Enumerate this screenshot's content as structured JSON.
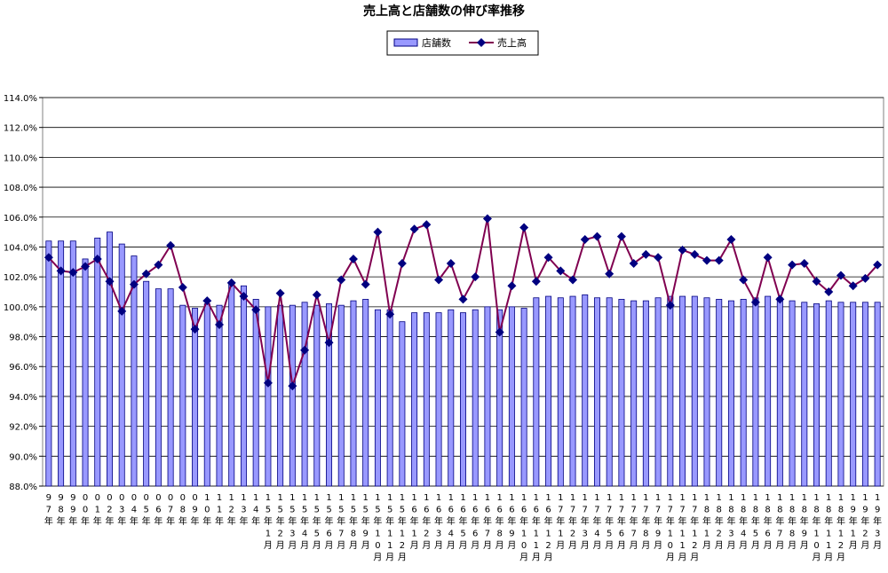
{
  "chart_data": {
    "type": "bar-line",
    "title": "売上高と店舗数の伸び率推移",
    "categories": [
      "97年",
      "98年",
      "99年",
      "00年",
      "01年",
      "02年",
      "03年",
      "04年",
      "05年",
      "06年",
      "07年",
      "08年",
      "09年",
      "10年",
      "11年",
      "12年",
      "13年",
      "14年",
      "15年1月",
      "15年2月",
      "15年3月",
      "15年4月",
      "15年5月",
      "15年6月",
      "15年7月",
      "15年8月",
      "15年9月",
      "15年10月",
      "15年11月",
      "15年12月",
      "16年1月",
      "16年2月",
      "16年3月",
      "16年4月",
      "16年5月",
      "16年6月",
      "16年7月",
      "16年8月",
      "16年9月",
      "16年10月",
      "16年11月",
      "16年12月",
      "17年1月",
      "17年2月",
      "17年3月",
      "17年4月",
      "17年5月",
      "17年6月",
      "17年7月",
      "17年8月",
      "17年9月",
      "17年10月",
      "17年11月",
      "17年12月",
      "18年1月",
      "18年2月",
      "18年3月",
      "18年4月",
      "18年5月",
      "18年6月",
      "18年7月",
      "18年8月",
      "18年9月",
      "18年10月",
      "18年11月",
      "18年12月",
      "19年1月",
      "19年2月",
      "19年3月"
    ],
    "series": [
      {
        "name": "店舗数",
        "type": "bar",
        "color": "#9999ff",
        "values": [
          104.4,
          104.4,
          104.4,
          103.2,
          104.6,
          105.0,
          104.2,
          103.4,
          101.7,
          101.2,
          101.2,
          100.1,
          99.9,
          100.2,
          100.1,
          101.5,
          101.4,
          100.5,
          100.0,
          100.1,
          100.1,
          100.3,
          100.1,
          100.2,
          100.1,
          100.4,
          100.5,
          99.8,
          99.8,
          99.0,
          99.6,
          99.6,
          99.6,
          99.8,
          99.6,
          99.8,
          100.0,
          99.8,
          100.0,
          99.9,
          100.6,
          100.7,
          100.6,
          100.7,
          100.8,
          100.6,
          100.6,
          100.5,
          100.4,
          100.4,
          100.6,
          100.7,
          100.7,
          100.7,
          100.6,
          100.5,
          100.4,
          100.5,
          100.6,
          100.7,
          100.6,
          100.4,
          100.3,
          100.2,
          100.4,
          100.3,
          100.3,
          100.3,
          100.3
        ]
      },
      {
        "name": "売上高",
        "type": "line",
        "color": "#800050",
        "values": [
          103.3,
          102.4,
          102.3,
          102.7,
          103.2,
          101.7,
          99.7,
          101.5,
          102.2,
          102.8,
          104.1,
          101.3,
          98.5,
          100.4,
          98.8,
          101.6,
          100.7,
          99.8,
          94.9,
          100.9,
          94.7,
          97.1,
          100.8,
          97.6,
          101.8,
          103.2,
          101.5,
          105.0,
          99.5,
          102.9,
          105.2,
          105.5,
          101.8,
          102.9,
          100.5,
          102.0,
          105.9,
          98.3,
          101.4,
          105.3,
          101.7,
          103.3,
          102.4,
          101.8,
          104.5,
          104.7,
          102.2,
          104.7,
          102.9,
          103.5,
          103.3,
          100.1,
          103.8,
          103.5,
          103.1,
          103.1,
          104.5,
          101.8,
          100.3,
          103.3,
          100.5,
          102.8,
          102.9,
          101.7,
          101.0,
          102.1,
          101.4,
          101.9,
          102.8
        ]
      }
    ],
    "ylim": [
      88,
      114
    ],
    "yticks": [
      {
        "value": 88,
        "label": "88.0%"
      },
      {
        "value": 90,
        "label": "90.0%"
      },
      {
        "value": 92,
        "label": "92.0%"
      },
      {
        "value": 94,
        "label": "94.0%"
      },
      {
        "value": 96,
        "label": "96.0%"
      },
      {
        "value": 98,
        "label": "98.0%"
      },
      {
        "value": 100,
        "label": "100.0%"
      },
      {
        "value": 102,
        "label": "102.0%"
      },
      {
        "value": 104,
        "label": "104.0%"
      },
      {
        "value": 106,
        "label": "106.0%"
      },
      {
        "value": 108,
        "label": "108.0%"
      },
      {
        "value": 110,
        "label": "110.0%"
      },
      {
        "value": 112,
        "label": "112.0%"
      },
      {
        "value": 114,
        "label": "114.0%"
      }
    ],
    "grid": true,
    "legend": "top"
  }
}
